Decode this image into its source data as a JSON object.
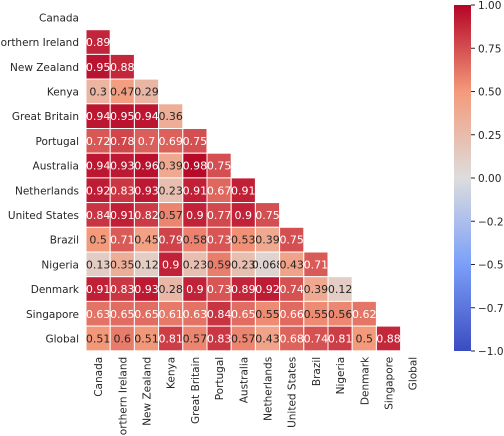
{
  "chart_data": {
    "type": "heatmap",
    "title": "",
    "xlabel": "",
    "ylabel": "",
    "labels": [
      "Canada",
      "Northern Ireland",
      "New Zealand",
      "Kenya",
      "Great Britain",
      "Portugal",
      "Australia",
      "Netherlands",
      "United States",
      "Brazil",
      "Nigeria",
      "Denmark",
      "Singapore",
      "Global"
    ],
    "rows": [
      [],
      [
        0.89
      ],
      [
        0.95,
        0.88
      ],
      [
        0.3,
        0.47,
        0.29
      ],
      [
        0.94,
        0.95,
        0.94,
        0.36
      ],
      [
        0.72,
        0.78,
        0.7,
        0.69,
        0.75
      ],
      [
        0.94,
        0.93,
        0.96,
        0.39,
        0.98,
        0.75
      ],
      [
        0.92,
        0.83,
        0.93,
        0.23,
        0.91,
        0.67,
        0.91
      ],
      [
        0.84,
        0.91,
        0.82,
        0.57,
        0.9,
        0.77,
        0.9,
        0.75
      ],
      [
        0.5,
        0.71,
        0.45,
        0.79,
        0.58,
        0.73,
        0.53,
        0.39,
        0.75
      ],
      [
        0.13,
        0.35,
        0.12,
        0.9,
        0.23,
        0.59,
        0.23,
        0.068,
        0.43,
        0.71
      ],
      [
        0.91,
        0.83,
        0.93,
        0.28,
        0.9,
        0.73,
        0.89,
        0.92,
        0.74,
        0.39,
        0.12
      ],
      [
        0.63,
        0.65,
        0.65,
        0.61,
        0.63,
        0.84,
        0.65,
        0.55,
        0.66,
        0.55,
        0.56,
        0.62
      ],
      [
        0.51,
        0.6,
        0.51,
        0.81,
        0.57,
        0.83,
        0.57,
        0.43,
        0.68,
        0.74,
        0.81,
        0.5,
        0.88
      ]
    ],
    "mask": "upper-triangle",
    "colormap": "coolwarm",
    "colormap_stops": [
      "#3b4cc0",
      "#dddddd",
      "#b40426"
    ],
    "vmin": -1.0,
    "vmax": 1.0,
    "colorbar_ticks": [
      "1.00",
      "0.75",
      "0.50",
      "0.25",
      "0.00",
      "−0.25",
      "−0.50",
      "−0.75",
      "−1.00"
    ],
    "colorbar_values": [
      1.0,
      0.75,
      0.5,
      0.25,
      0.0,
      -0.25,
      -0.5,
      -0.75,
      -1.0
    ],
    "annotate": true,
    "legend": "colorbar-right"
  }
}
